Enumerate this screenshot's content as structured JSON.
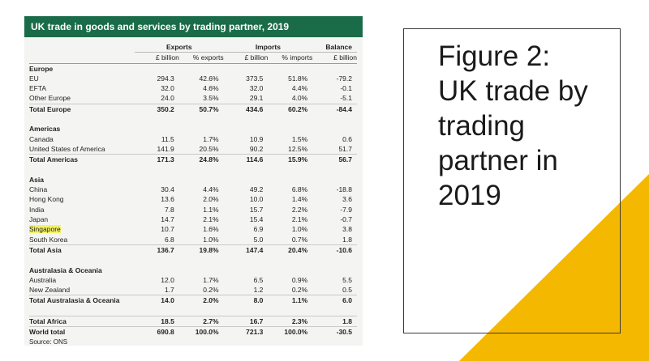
{
  "table": {
    "header_title": "UK trade in goods and services by trading partner, 2019",
    "col_groups": {
      "exports": "Exports",
      "imports": "Imports",
      "balance": "Balance"
    },
    "units": {
      "exp_val": "£ billion",
      "exp_pct": "% exports",
      "imp_val": "£ billion",
      "imp_pct": "% imports",
      "bal": "£ billion"
    },
    "sections": [
      {
        "name": "Europe",
        "rows": [
          {
            "label": "EU",
            "exp": "294.3",
            "exp_pct": "42.6%",
            "imp": "373.5",
            "imp_pct": "51.8%",
            "bal": "-79.2"
          },
          {
            "label": "EFTA",
            "exp": "32.0",
            "exp_pct": "4.6%",
            "imp": "32.0",
            "imp_pct": "4.4%",
            "bal": "-0.1"
          },
          {
            "label": "Other Europe",
            "exp": "24.0",
            "exp_pct": "3.5%",
            "imp": "29.1",
            "imp_pct": "4.0%",
            "bal": "-5.1"
          }
        ],
        "total": {
          "label": "Total Europe",
          "exp": "350.2",
          "exp_pct": "50.7%",
          "imp": "434.6",
          "imp_pct": "60.2%",
          "bal": "-84.4"
        }
      },
      {
        "name": "Americas",
        "rows": [
          {
            "label": "Canada",
            "exp": "11.5",
            "exp_pct": "1.7%",
            "imp": "10.9",
            "imp_pct": "1.5%",
            "bal": "0.6"
          },
          {
            "label": "United States of America",
            "exp": "141.9",
            "exp_pct": "20.5%",
            "imp": "90.2",
            "imp_pct": "12.5%",
            "bal": "51.7"
          }
        ],
        "total": {
          "label": "Total Americas",
          "exp": "171.3",
          "exp_pct": "24.8%",
          "imp": "114.6",
          "imp_pct": "15.9%",
          "bal": "56.7"
        }
      },
      {
        "name": "Asia",
        "rows": [
          {
            "label": "China",
            "exp": "30.4",
            "exp_pct": "4.4%",
            "imp": "49.2",
            "imp_pct": "6.8%",
            "bal": "-18.8"
          },
          {
            "label": "Hong Kong",
            "exp": "13.6",
            "exp_pct": "2.0%",
            "imp": "10.0",
            "imp_pct": "1.4%",
            "bal": "3.6"
          },
          {
            "label": "India",
            "exp": "7.8",
            "exp_pct": "1.1%",
            "imp": "15.7",
            "imp_pct": "2.2%",
            "bal": "-7.9"
          },
          {
            "label": "Japan",
            "exp": "14.7",
            "exp_pct": "2.1%",
            "imp": "15.4",
            "imp_pct": "2.1%",
            "bal": "-0.7"
          },
          {
            "label": "Singapore",
            "exp": "10.7",
            "exp_pct": "1.6%",
            "imp": "6.9",
            "imp_pct": "1.0%",
            "bal": "3.8",
            "highlight": true
          },
          {
            "label": "South Korea",
            "exp": "6.8",
            "exp_pct": "1.0%",
            "imp": "5.0",
            "imp_pct": "0.7%",
            "bal": "1.8"
          }
        ],
        "total": {
          "label": "Total Asia",
          "exp": "136.7",
          "exp_pct": "19.8%",
          "imp": "147.4",
          "imp_pct": "20.4%",
          "bal": "-10.6"
        }
      },
      {
        "name": "Australasia & Oceania",
        "rows": [
          {
            "label": "Australia",
            "exp": "12.0",
            "exp_pct": "1.7%",
            "imp": "6.5",
            "imp_pct": "0.9%",
            "bal": "5.5"
          },
          {
            "label": "New Zealand",
            "exp": "1.7",
            "exp_pct": "0.2%",
            "imp": "1.2",
            "imp_pct": "0.2%",
            "bal": "0.5"
          }
        ],
        "total": {
          "label": "Total Australasia & Oceania",
          "exp": "14.0",
          "exp_pct": "2.0%",
          "imp": "8.0",
          "imp_pct": "1.1%",
          "bal": "6.0"
        }
      }
    ],
    "extra_totals": [
      {
        "label": "Total Africa",
        "exp": "18.5",
        "exp_pct": "2.7%",
        "imp": "16.7",
        "imp_pct": "2.3%",
        "bal": "1.8"
      },
      {
        "label": "World total",
        "exp": "690.8",
        "exp_pct": "100.0%",
        "imp": "721.3",
        "imp_pct": "100.0%",
        "bal": "-30.5"
      }
    ],
    "source": "Source: ONS",
    "colors": {
      "header_bg": "#1a6b48",
      "highlight": "#f3f26a",
      "panel_bg": "#f4f4f2"
    }
  },
  "slide": {
    "title_lines": [
      "Figure 2:",
      "UK trade by",
      "trading",
      "partner in",
      "2019"
    ],
    "accent_color": "#f5b800",
    "frame_color": "#3a3a3a"
  }
}
